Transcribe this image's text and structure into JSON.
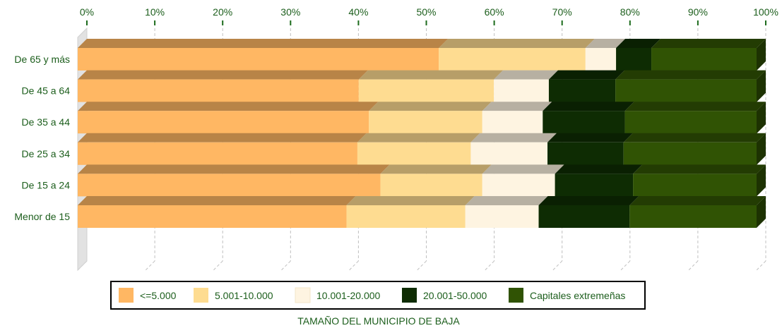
{
  "chart_data": {
    "type": "bar",
    "orientation": "horizontal",
    "stacked": "percent",
    "title": "",
    "xlabel": "TAMAÑO DEL MUNICIPIO DE BAJA",
    "ylabel": "",
    "xlim": [
      0,
      100
    ],
    "x_ticks": [
      "0%",
      "10%",
      "20%",
      "30%",
      "40%",
      "50%",
      "60%",
      "70%",
      "80%",
      "90%",
      "100%"
    ],
    "x_tick_values": [
      0,
      10,
      20,
      30,
      40,
      50,
      60,
      70,
      80,
      90,
      100
    ],
    "grid": "vertical-dashed",
    "legend_position": "bottom",
    "categories": [
      "De 65 y más",
      "De 45 a 64",
      "De 35 a 44",
      "De 25 a 34",
      "De 15 a 24",
      "Menor de 15"
    ],
    "series": [
      {
        "name": "<=5.000",
        "color": "#ffb763",
        "values": [
          53.2,
          41.4,
          42.9,
          41.2,
          44.6,
          39.6
        ]
      },
      {
        "name": "5.001-10.000",
        "color": "#fedc91",
        "values": [
          21.6,
          19.9,
          16.7,
          16.7,
          15.0,
          17.5
        ]
      },
      {
        "name": "10.001-20.000",
        "color": "#fef4e1",
        "values": [
          4.5,
          8.1,
          8.9,
          11.3,
          10.7,
          10.8
        ]
      },
      {
        "name": "20.001-50.000",
        "color": "#0e2c03",
        "values": [
          5.2,
          9.8,
          12.1,
          11.2,
          11.5,
          13.4
        ]
      },
      {
        "name": "Capitales extremeñas",
        "color": "#305304",
        "values": [
          15.5,
          20.8,
          19.4,
          19.6,
          18.2,
          18.7
        ]
      }
    ]
  }
}
